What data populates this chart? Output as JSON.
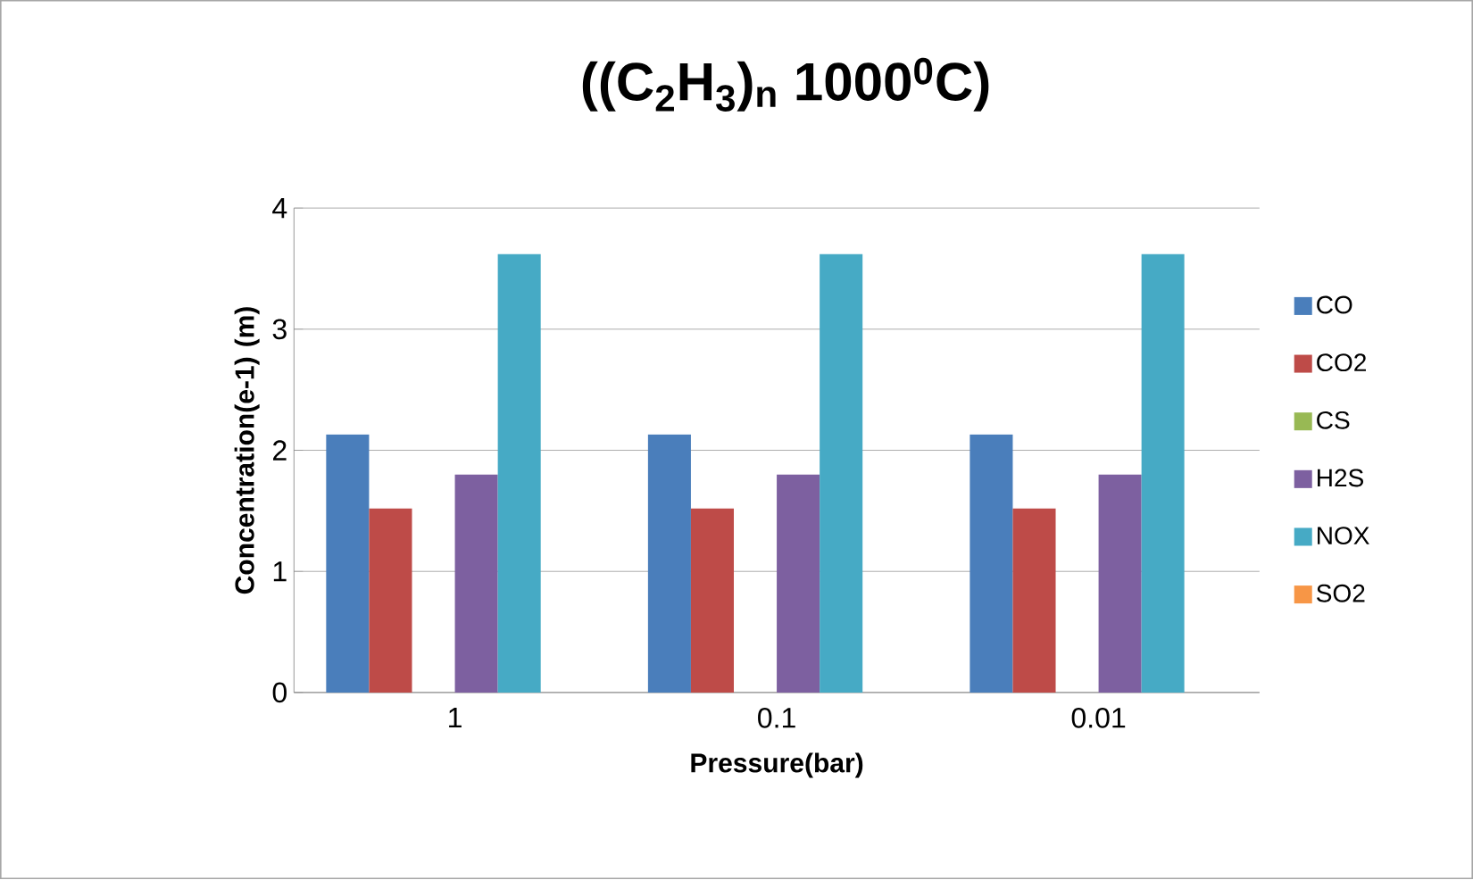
{
  "chart_data": {
    "type": "bar",
    "title": "((C$_{2}$H$_{3}$)$_{n}$ 1000$^{0}$C)",
    "xlabel": "Pressure(bar)",
    "ylabel": "Concentration(e-1) (m)",
    "categories": [
      "1",
      "0.1",
      "0.01"
    ],
    "series": [
      {
        "name": "CO",
        "color": "#4a7ebb",
        "values": [
          2.13,
          2.13,
          2.13
        ]
      },
      {
        "name": "CO2",
        "color": "#be4b48",
        "values": [
          1.52,
          1.52,
          1.52
        ]
      },
      {
        "name": "CS",
        "color": "#98b954",
        "values": [
          0,
          0,
          0
        ]
      },
      {
        "name": "H2S",
        "color": "#7d60a0",
        "values": [
          1.8,
          1.8,
          1.8
        ]
      },
      {
        "name": "NOX",
        "color": "#46aac5",
        "values": [
          3.62,
          3.62,
          3.62
        ]
      },
      {
        "name": "SO2",
        "color": "#f79646",
        "values": [
          0,
          0,
          0
        ]
      }
    ],
    "ylim": [
      0,
      4
    ],
    "yticks": [
      0,
      1,
      2,
      3,
      4
    ],
    "grid": "y",
    "legend": "right"
  }
}
